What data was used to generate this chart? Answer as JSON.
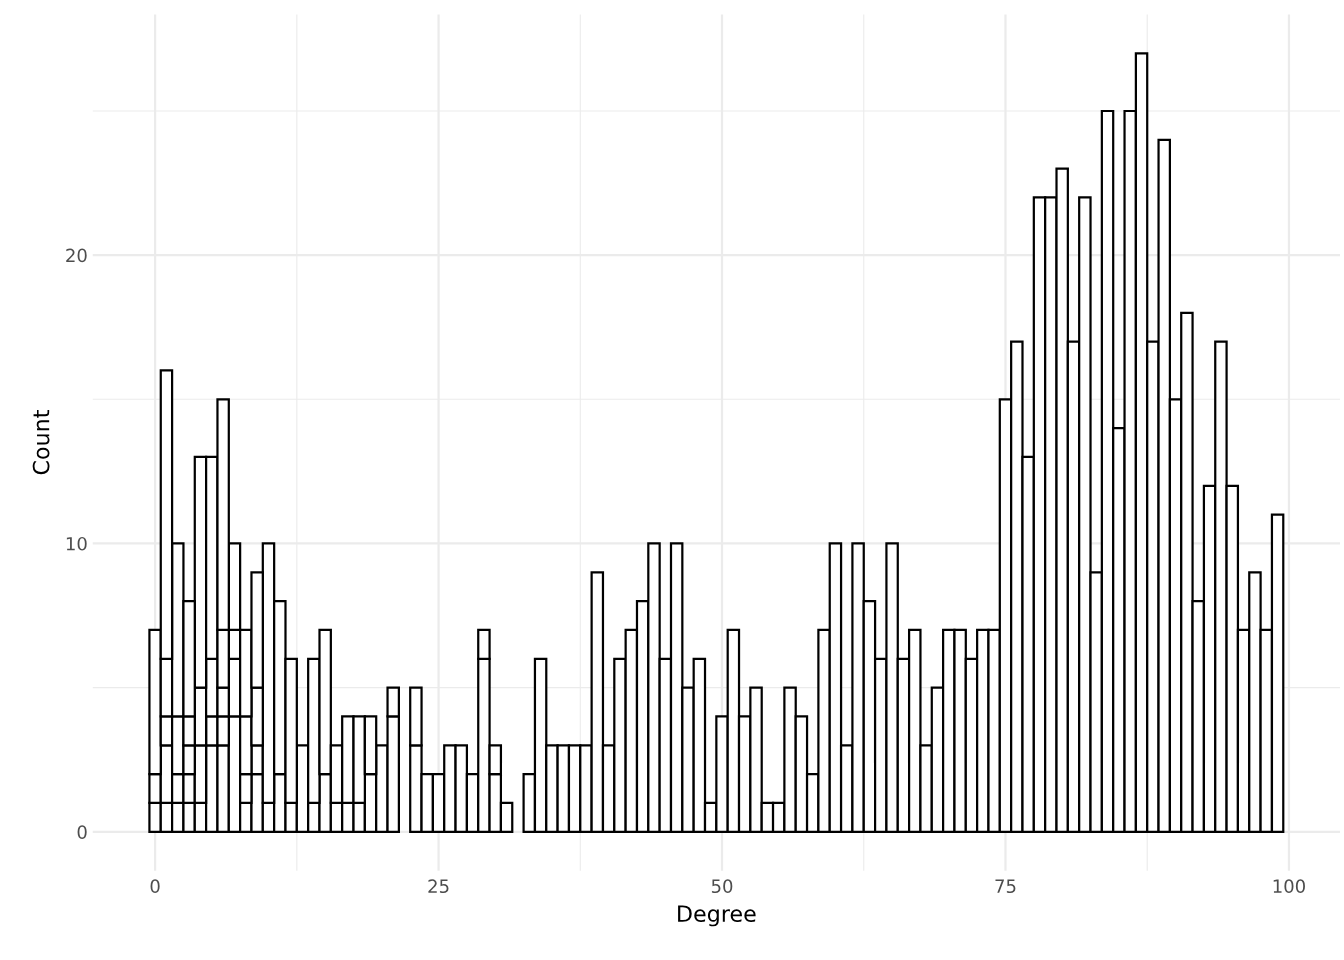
{
  "chart_data": {
    "type": "bar",
    "xlabel": "Degree",
    "ylabel": "Count",
    "stacked": true,
    "grid": true,
    "x": [
      0,
      1,
      2,
      3,
      4,
      5,
      6,
      7,
      8,
      9,
      10,
      11,
      12,
      13,
      14,
      15,
      16,
      17,
      18,
      19,
      20,
      21,
      22,
      23,
      24,
      25,
      26,
      27,
      28,
      29,
      30,
      31,
      32,
      33,
      34,
      35,
      36,
      37,
      38,
      39,
      40,
      41,
      42,
      43,
      44,
      45,
      46,
      47,
      48,
      49,
      50,
      51,
      52,
      53,
      54,
      55,
      56,
      57,
      58,
      59,
      60,
      61,
      62,
      63,
      64,
      65,
      66,
      67,
      68,
      69,
      70,
      71,
      72,
      73,
      74,
      75,
      76,
      77,
      78,
      79,
      80,
      81,
      82,
      83,
      84,
      85,
      86,
      87,
      88,
      89,
      90,
      91,
      92,
      93,
      94,
      95,
      96,
      97,
      98,
      99
    ],
    "series": [
      {
        "color": "#ffffff",
        "values": [
          1,
          1,
          1,
          1,
          1,
          3,
          3,
          4,
          1,
          2,
          1,
          2,
          1,
          3,
          1,
          2,
          1,
          1,
          1,
          2,
          3,
          4,
          null,
          3,
          2,
          2,
          3,
          3,
          2,
          6,
          2,
          1,
          null,
          2,
          6,
          3,
          3,
          3,
          3,
          9,
          3,
          6,
          7,
          8,
          10,
          6,
          10,
          5,
          6,
          1,
          4,
          7,
          4,
          5,
          1,
          1,
          5,
          4,
          2,
          7,
          10,
          3,
          10,
          8,
          6,
          10,
          6,
          7,
          3,
          5,
          7,
          7,
          6,
          7,
          7,
          15,
          17,
          13,
          22,
          22,
          23,
          17,
          22,
          9,
          25,
          14,
          25,
          27,
          17,
          24,
          15,
          18,
          8,
          12,
          17,
          12,
          7,
          9,
          7,
          11
        ]
      },
      {
        "color": "#ffffff",
        "values": [
          1,
          2,
          1,
          1,
          2,
          1,
          1,
          2,
          1,
          1,
          9,
          6,
          5,
          null,
          5,
          5,
          2,
          3,
          3,
          2,
          null,
          1,
          null,
          2,
          null,
          null,
          null,
          null,
          null,
          1,
          1,
          null,
          null,
          null,
          null,
          null,
          null,
          null,
          null,
          null,
          null,
          null,
          null,
          null,
          null,
          null,
          null,
          null,
          null,
          null,
          null,
          null,
          null,
          null,
          null,
          null,
          null,
          null,
          null,
          null,
          null,
          null,
          null,
          null,
          null,
          null,
          null,
          null,
          null,
          null,
          null,
          null,
          null,
          null,
          null,
          null,
          null,
          null,
          null,
          null,
          null,
          null,
          null,
          null,
          null,
          null,
          null,
          null,
          null,
          null,
          null,
          null,
          null,
          null,
          null,
          null,
          null,
          null,
          null,
          null
        ]
      },
      {
        "color": "#ffffff",
        "values": [
          5,
          1,
          2,
          1,
          2,
          2,
          1,
          1,
          2,
          2,
          null,
          null,
          null,
          null,
          null,
          null,
          null,
          null,
          null,
          null,
          null,
          null,
          null,
          null,
          null,
          null,
          null,
          null,
          null,
          null,
          null,
          null,
          null,
          null,
          null,
          null,
          null,
          null,
          null,
          null,
          null,
          null,
          null,
          null,
          null,
          null,
          null,
          null,
          null,
          null,
          null,
          null,
          null,
          null,
          null,
          null,
          null,
          null,
          null,
          null,
          null,
          null,
          null,
          null,
          null,
          null,
          null,
          null,
          null,
          null,
          null,
          null,
          null,
          null,
          null,
          null,
          null,
          null,
          null,
          null,
          null,
          null,
          null,
          null,
          null,
          null,
          null,
          null,
          null,
          null,
          null,
          null,
          null,
          null,
          null,
          null,
          null,
          null,
          null,
          null
        ]
      },
      {
        "color": "#ffffff",
        "values": [
          null,
          2,
          6,
          1,
          8,
          7,
          2,
          3,
          3,
          4,
          null,
          null,
          null,
          null,
          null,
          null,
          null,
          null,
          null,
          null,
          null,
          null,
          null,
          null,
          null,
          null,
          null,
          null,
          null,
          null,
          null,
          null,
          null,
          null,
          null,
          null,
          null,
          null,
          null,
          null,
          null,
          null,
          null,
          null,
          null,
          null,
          null,
          null,
          null,
          null,
          null,
          null,
          null,
          null,
          null,
          null,
          null,
          null,
          null,
          null,
          null,
          null,
          null,
          null,
          null,
          null,
          null,
          null,
          null,
          null,
          null,
          null,
          null,
          null,
          null,
          null,
          null,
          null,
          null,
          null,
          null,
          null,
          null,
          null,
          null,
          null,
          null,
          null,
          null,
          null,
          null,
          null,
          null,
          null,
          null,
          null,
          null,
          null,
          null,
          null
        ]
      },
      {
        "color": "#ffffff",
        "values": [
          null,
          10,
          null,
          4,
          null,
          null,
          8,
          null,
          null,
          null,
          null,
          null,
          null,
          null,
          null,
          null,
          null,
          null,
          null,
          null,
          null,
          null,
          null,
          null,
          null,
          null,
          null,
          null,
          null,
          null,
          null,
          null,
          null,
          null,
          null,
          null,
          null,
          null,
          null,
          null,
          null,
          null,
          null,
          null,
          null,
          null,
          null,
          null,
          null,
          null,
          null,
          null,
          null,
          null,
          null,
          null,
          null,
          null,
          null,
          null,
          null,
          null,
          null,
          null,
          null,
          null,
          null,
          null,
          null,
          null,
          null,
          null,
          null,
          null,
          null,
          null,
          null,
          null,
          null,
          null,
          null,
          null,
          null,
          null,
          null,
          null,
          null,
          null,
          null,
          null,
          null,
          null,
          null,
          null,
          null,
          null,
          null,
          null,
          null,
          null
        ]
      }
    ],
    "xlim": [
      -5.5,
      104.5
    ],
    "ylim": [
      -1.35,
      28.35
    ],
    "xticks": [
      0,
      {
        "value": 12.5,
        "label": null
      },
      25,
      {
        "value": 37.5,
        "label": null
      },
      50,
      {
        "value": 62.5,
        "label": null
      },
      75,
      {
        "value": 87.5,
        "label": null
      },
      100
    ],
    "yticks": [
      0,
      {
        "value": 5,
        "label": null
      },
      10,
      {
        "value": 15,
        "label": null
      },
      20,
      {
        "value": 25,
        "label": null
      }
    ]
  }
}
